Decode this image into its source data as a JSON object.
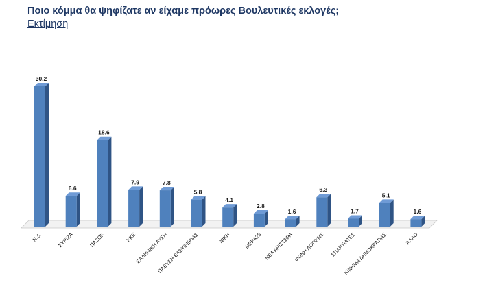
{
  "header": {
    "title": "Ποιο κόμμα θα ψηφίζατε αν είχαμε πρόωρες Βουλευτικές εκλογές;",
    "subtitle": "Εκτίμηση"
  },
  "colors": {
    "title": "#1f3864",
    "bar_front": "#4f81bd",
    "bar_side": "#2f5485",
    "bar_top": "#6f9bd6",
    "floor": "#f2f2f2"
  },
  "chart_data": {
    "type": "bar",
    "title": "Ποιο κόμμα θα ψηφίζατε αν είχαμε πρόωρες Βουλευτικές εκλογές;",
    "subtitle": "Εκτίμηση",
    "categories": [
      "Ν.Δ.",
      "ΣΥΡΙΖΑ",
      "ΠΑΣΟΚ",
      "ΚΚΕ",
      "ΕΛΛΗΝΙΚΗ ΛΥΣΗ",
      "ΠΛΕΥΣΗ ΕΛΕΥΘΕΡΙΑΣ",
      "ΝΙΚΗ",
      "ΜΕΡΑ25",
      "ΝΕΑ ΑΡΙΣΤΕΡΑ",
      "ΦΩΝΗ ΛΟΓΙΚΗΣ",
      "ΣΠΑΡΤΙΑΤΕΣ",
      "ΚΙΝΗΜΑ ΔΗΜΟΚΡΑΤΙΑΣ",
      "ΆΛΛΟ"
    ],
    "values": [
      30.2,
      6.6,
      18.6,
      7.9,
      7.8,
      5.8,
      4.1,
      2.8,
      1.6,
      6.3,
      1.7,
      5.1,
      1.6
    ],
    "value_labels": [
      "30.2",
      "6.6",
      "18.6",
      "7.9",
      "7.8",
      "5.8",
      "4.1",
      "2.8",
      "1.6",
      "6.3",
      "1.7",
      "5.1",
      "1.6"
    ],
    "xlabel": "",
    "ylabel": "",
    "ylim": [
      0,
      30.2
    ],
    "grid": false,
    "legend": "none",
    "style": "3d-column"
  }
}
